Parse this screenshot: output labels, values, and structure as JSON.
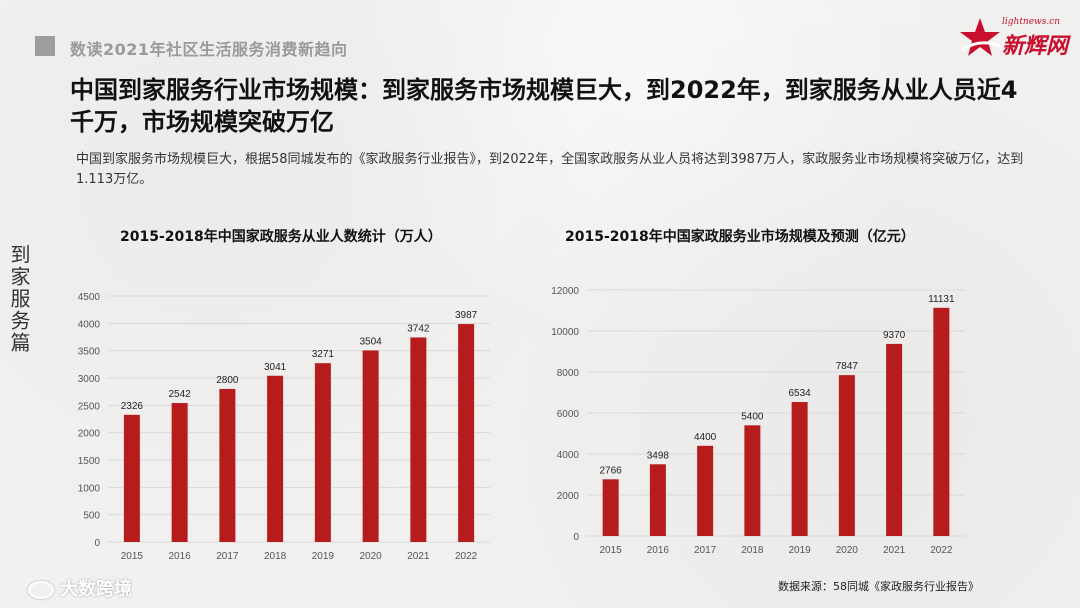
{
  "header": {
    "section_title": "数读2021年社区生活服务消费新趋向"
  },
  "logo": {
    "url_text": "lightnews.cn",
    "brand_text": "新辉网",
    "color": "#c8102e"
  },
  "main_title": "中国到家服务行业市场规模：到家服务市场规模巨大，到2022年，到家服务从业人员近4千万，市场规模突破万亿",
  "description": "中国到家服务市场规模巨大，根据58同城发布的《家政服务行业报告》，到2022年，全国家政服务从业人员将达到3987万人，家政服务业市场规模将突破万亿，达到1.113万亿。",
  "side_label": "到家服务篇",
  "source": "数据来源：58同城《家政服务行业报告》",
  "watermark": "大数跨境",
  "colors": {
    "bar": "#b71c1c",
    "grid": "#d9d9d9",
    "axis_text": "#555555"
  },
  "chart_data": [
    {
      "type": "bar",
      "title": "2015-2018年中国家政服务从业人数统计（万人）",
      "categories": [
        "2015",
        "2016",
        "2017",
        "2018",
        "2019",
        "2020",
        "2021",
        "2022"
      ],
      "values": [
        2326,
        2542,
        2800,
        3041,
        3271,
        3504,
        3742,
        3987
      ],
      "ylim": [
        0,
        4500
      ],
      "yticks": [
        0,
        500,
        1000,
        1500,
        2000,
        2500,
        3000,
        3500,
        4000,
        4500
      ],
      "grid": true
    },
    {
      "type": "bar",
      "title": "2015-2018年中国家政服务业市场规模及预测（亿元）",
      "categories": [
        "2015",
        "2016",
        "2017",
        "2018",
        "2019",
        "2020",
        "2021",
        "2022"
      ],
      "values": [
        2766,
        3498,
        4400,
        5400,
        6534,
        7847,
        9370,
        11131
      ],
      "ylim": [
        0,
        12000
      ],
      "yticks": [
        0,
        2000,
        4000,
        6000,
        8000,
        10000,
        12000
      ],
      "grid": true
    }
  ]
}
